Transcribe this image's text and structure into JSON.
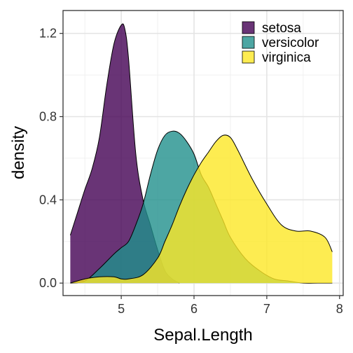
{
  "chart_data": {
    "type": "area",
    "title": "",
    "xlabel": "Sepal.Length",
    "ylabel": "density",
    "xlim": [
      4.2,
      8.05
    ],
    "ylim": [
      -0.06,
      1.31
    ],
    "x_ticks": [
      5,
      6,
      7,
      8
    ],
    "y_ticks": [
      0.0,
      0.4,
      0.8,
      1.2
    ],
    "x_tick_labels": [
      "5",
      "6",
      "7",
      "8"
    ],
    "y_tick_labels": [
      "0.0",
      "0.4",
      "0.8",
      "1.2"
    ],
    "grid": true,
    "legend_position": "top-right",
    "series": [
      {
        "name": "setosa",
        "color": "#440154",
        "opacity": 0.8,
        "x": [
          4.3,
          4.4,
          4.5,
          4.6,
          4.7,
          4.8,
          4.9,
          5.0,
          5.05,
          5.1,
          5.2,
          5.3,
          5.4,
          5.5,
          5.6,
          5.7,
          5.8
        ],
        "y": [
          0.23,
          0.34,
          0.45,
          0.55,
          0.7,
          0.95,
          1.15,
          1.24,
          1.22,
          1.08,
          0.62,
          0.4,
          0.28,
          0.16,
          0.06,
          0.02,
          0.0
        ]
      },
      {
        "name": "versicolor",
        "color": "#21908C",
        "opacity": 0.8,
        "x": [
          4.3,
          4.5,
          4.7,
          4.9,
          5.0,
          5.1,
          5.2,
          5.3,
          5.4,
          5.5,
          5.6,
          5.7,
          5.8,
          5.9,
          6.0,
          6.1,
          6.2,
          6.3,
          6.4,
          6.5,
          6.7,
          6.9,
          7.1,
          7.3,
          7.5,
          7.7,
          7.9
        ],
        "y": [
          0.0,
          0.01,
          0.07,
          0.14,
          0.17,
          0.2,
          0.28,
          0.38,
          0.52,
          0.64,
          0.71,
          0.73,
          0.72,
          0.68,
          0.62,
          0.52,
          0.46,
          0.38,
          0.3,
          0.22,
          0.12,
          0.06,
          0.02,
          0.01,
          0.0,
          0.0,
          0.0
        ]
      },
      {
        "name": "virginica",
        "color": "#FDE725",
        "opacity": 0.8,
        "x": [
          4.3,
          4.5,
          4.7,
          4.9,
          5.0,
          5.1,
          5.3,
          5.5,
          5.6,
          5.7,
          5.8,
          5.9,
          6.0,
          6.1,
          6.2,
          6.3,
          6.4,
          6.5,
          6.6,
          6.8,
          7.0,
          7.2,
          7.4,
          7.6,
          7.8,
          7.9
        ],
        "y": [
          0.0,
          0.02,
          0.03,
          0.03,
          0.02,
          0.02,
          0.04,
          0.12,
          0.2,
          0.28,
          0.37,
          0.45,
          0.52,
          0.58,
          0.63,
          0.68,
          0.71,
          0.7,
          0.64,
          0.5,
          0.38,
          0.28,
          0.25,
          0.25,
          0.22,
          0.15
        ]
      }
    ]
  }
}
